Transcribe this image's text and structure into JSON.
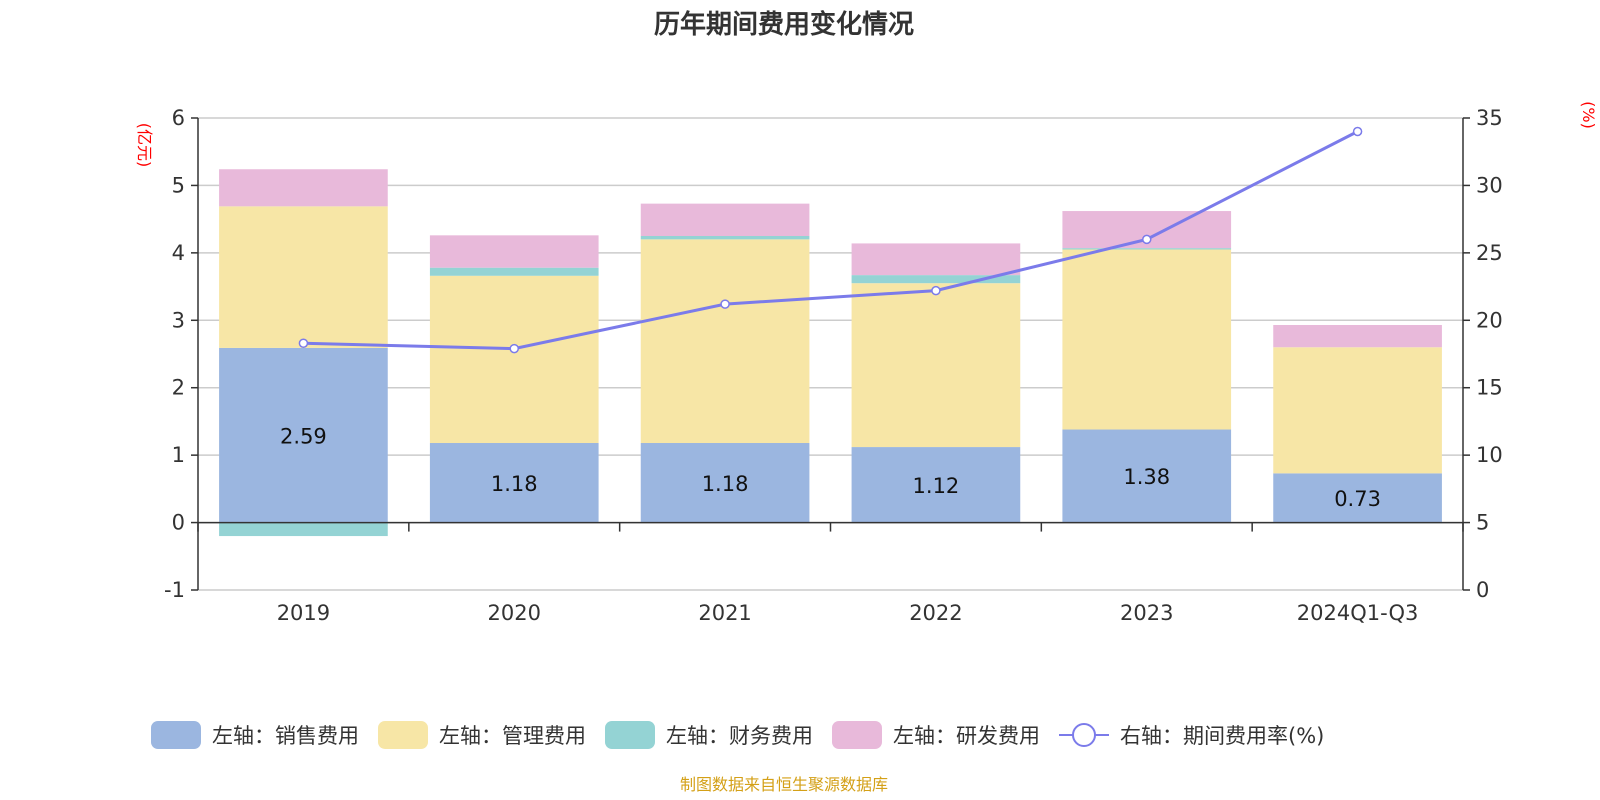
{
  "chart_data": {
    "type": "bar",
    "title": "历年期间费用变化情况",
    "left_axis_unit": "(亿元)",
    "right_axis_unit": "(%)",
    "categories": [
      "2019",
      "2020",
      "2021",
      "2022",
      "2023",
      "2024Q1-Q3"
    ],
    "left_ylim": [
      -1,
      6
    ],
    "left_ticks": [
      -1,
      0,
      1,
      2,
      3,
      4,
      5,
      6
    ],
    "right_ylim": [
      0,
      35
    ],
    "right_ticks": [
      0,
      5,
      10,
      15,
      20,
      25,
      30,
      35
    ],
    "series": [
      {
        "name": "左轴：销售费用",
        "axis": "left",
        "stack": true,
        "color": "#9bb6e0",
        "values": [
          2.59,
          1.18,
          1.18,
          1.12,
          1.38,
          0.73
        ],
        "labels": [
          "2.59",
          "1.18",
          "1.18",
          "1.12",
          "1.38",
          "0.73"
        ]
      },
      {
        "name": "左轴：管理费用",
        "axis": "left",
        "stack": true,
        "color": "#f7e6a6",
        "values": [
          2.1,
          2.48,
          3.02,
          2.43,
          2.67,
          1.87
        ]
      },
      {
        "name": "左轴：财务费用",
        "axis": "left",
        "stack": true,
        "color": "#94d3d4",
        "values": [
          -0.2,
          0.12,
          0.05,
          0.12,
          0.02,
          -0.01
        ]
      },
      {
        "name": "左轴：研发费用",
        "axis": "left",
        "stack": true,
        "color": "#e8b9da",
        "values": [
          0.55,
          0.48,
          0.48,
          0.47,
          0.55,
          0.33
        ]
      },
      {
        "name": "右轴：期间费用率(%)",
        "axis": "right",
        "type": "line",
        "color": "#7b7bea",
        "values": [
          18.3,
          17.9,
          21.2,
          22.2,
          26.0,
          34.0
        ]
      }
    ],
    "legend_position": "bottom",
    "grid": true
  },
  "source_text": "制图数据来自恒生聚源数据库"
}
